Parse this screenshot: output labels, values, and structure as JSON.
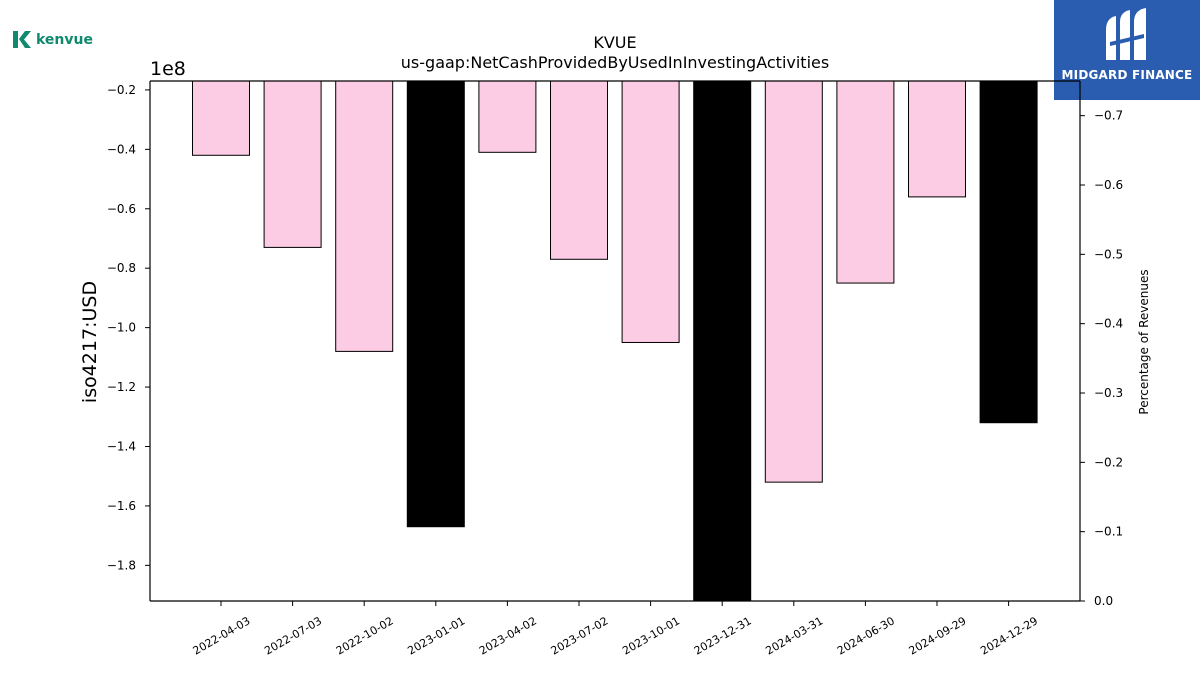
{
  "brand": {
    "left_logo_text": "kenvue",
    "right_logo_text": "MIDGARD FINANCE"
  },
  "chart_data": {
    "type": "bar",
    "title": "KVUE",
    "subtitle": "us-gaap:NetCashProvidedByUsedInInvestingActivities",
    "ylabel": "iso4217:USD",
    "y_offset_label": "1e8",
    "y2label": "Percentage of Revenues",
    "categories": [
      "2022-04-03",
      "2022-07-03",
      "2022-10-02",
      "2023-01-01",
      "2023-04-02",
      "2023-07-02",
      "2023-10-01",
      "2023-12-31",
      "2024-03-31",
      "2024-06-30",
      "2024-09-29",
      "2024-12-29"
    ],
    "values": [
      -42000000,
      -73000000,
      -108000000,
      -167000000,
      -41000000,
      -77000000,
      -105000000,
      -193000000,
      -152000000,
      -85000000,
      -56000000,
      -132000000
    ],
    "bar_colors": [
      "#fccbe4",
      "#fccbe4",
      "#fccbe4",
      "#000000",
      "#fccbe4",
      "#fccbe4",
      "#fccbe4",
      "#000000",
      "#fccbe4",
      "#fccbe4",
      "#fccbe4",
      "#000000"
    ],
    "ylim": [
      -1.92,
      -0.17
    ],
    "yticks": [
      -0.2,
      -0.4,
      -0.6,
      -0.8,
      -1.0,
      -1.2,
      -1.4,
      -1.6,
      -1.8
    ],
    "ytick_labels": [
      "−0.2",
      "−0.4",
      "−0.6",
      "−0.8",
      "−1.0",
      "−1.2",
      "−1.4",
      "−1.6",
      "−1.8"
    ],
    "y2lim": [
      0.0,
      -0.75
    ],
    "y2ticks": [
      -0.7,
      -0.6,
      -0.5,
      -0.4,
      -0.3,
      -0.2,
      -0.1,
      0.0
    ],
    "y2tick_labels": [
      "−0.7",
      "−0.6",
      "−0.5",
      "−0.4",
      "−0.3",
      "−0.2",
      "−0.1",
      "0.0"
    ],
    "grid": false
  }
}
